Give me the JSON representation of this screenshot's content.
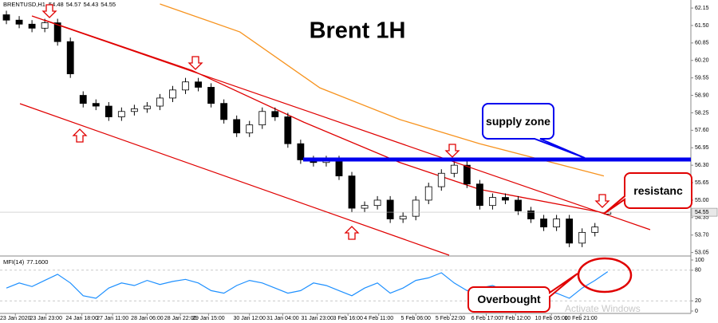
{
  "chart_data": [
    {
      "type": "candlestick",
      "title": "Brent 1H",
      "symbol": "BRENTUSD,H1",
      "xlim": [
        0,
        54
      ],
      "ylim": [
        52.95,
        62.36
      ],
      "open": [
        61.9,
        61.7,
        61.55,
        61.4,
        61.6,
        60.9,
        58.9,
        58.6,
        58.5,
        58.1,
        58.3,
        58.4,
        58.5,
        58.8,
        59.1,
        59.4,
        59.2,
        58.6,
        58,
        57.5,
        57.8,
        58.3,
        58.1,
        57.1,
        56.5,
        56.4,
        56.5,
        55.9,
        54.7,
        54.8,
        55,
        54.3,
        54.4,
        55,
        55.5,
        56,
        56.3,
        55.6,
        54.8,
        55.1,
        55,
        54.6,
        54.3,
        54,
        54.3,
        53.4,
        53.8,
        54.48
      ],
      "high": [
        62.05,
        61.85,
        61.7,
        61.75,
        61.75,
        61.05,
        59.05,
        58.75,
        58.65,
        58.45,
        58.55,
        58.65,
        58.95,
        59.25,
        59.55,
        59.55,
        59.35,
        58.75,
        58.15,
        57.95,
        58.45,
        58.45,
        58.25,
        57.25,
        56.65,
        56.65,
        56.65,
        56.05,
        54.95,
        55.15,
        55.15,
        54.55,
        55.15,
        55.65,
        56.15,
        56.45,
        56.45,
        55.75,
        55.25,
        55.25,
        55.15,
        54.75,
        54.45,
        54.45,
        54.45,
        53.95,
        54.15,
        54.57
      ],
      "low": [
        61.55,
        61.4,
        61.25,
        61.25,
        60.75,
        59.55,
        58.45,
        58.35,
        57.95,
        57.95,
        58.15,
        58.25,
        58.35,
        58.65,
        58.95,
        59.05,
        58.45,
        57.85,
        57.35,
        57.35,
        57.65,
        57.95,
        56.95,
        56.35,
        56.25,
        56.25,
        55.75,
        54.55,
        54.55,
        54.65,
        54.15,
        54.15,
        54.25,
        54.85,
        55.35,
        55.85,
        55.45,
        54.65,
        54.65,
        54.85,
        54.45,
        54.15,
        53.85,
        53.85,
        53.25,
        53.25,
        53.65,
        54.43
      ],
      "close": [
        61.7,
        61.55,
        61.4,
        61.6,
        60.9,
        59.7,
        58.6,
        58.5,
        58.1,
        58.3,
        58.4,
        58.5,
        58.8,
        59.1,
        59.4,
        59.2,
        58.6,
        58,
        57.5,
        57.8,
        58.3,
        58.1,
        57.1,
        56.5,
        56.4,
        56.5,
        55.9,
        54.7,
        54.8,
        55,
        54.3,
        54.4,
        55,
        55.5,
        56,
        56.3,
        55.6,
        54.8,
        55.1,
        55,
        54.6,
        54.3,
        54,
        54.3,
        53.4,
        53.8,
        54,
        54.55
      ],
      "overlays": [
        {
          "color": "#e00000",
          "x": [
            3.5,
            15,
            23.75,
            31.25,
            37.5,
            47.5
          ],
          "values": [
            61.7,
            59.83,
            57.9,
            56.4,
            55.4,
            54.5
          ]
        },
        {
          "color": "#f7931e",
          "x": [
            12.5,
            18.75,
            25,
            31.25,
            37.5,
            47.2
          ],
          "values": [
            62.3,
            61.26,
            59.18,
            58.0,
            57.1,
            55.9
          ]
        }
      ],
      "yticks": [
        62.15,
        {
          "value": 61.5,
          "label": "61.50"
        },
        60.85,
        {
          "value": 60.2,
          "label": "60.20"
        },
        59.55,
        {
          "value": 58.9,
          "label": "58.90"
        },
        58.25,
        {
          "value": 57.6,
          "label": "57.60"
        },
        56.95,
        {
          "value": 56.3,
          "label": "56.30"
        },
        55.65,
        {
          "value": 55,
          "label": "55.00"
        },
        54.35,
        {
          "value": 53.7,
          "label": "53.70"
        },
        53.05
      ],
      "xticks": [
        {
          "value": 1.2,
          "label": "23 Jan 2020"
        },
        {
          "value": 3.6,
          "label": "23 Jan 23:00"
        },
        {
          "value": 6.4,
          "label": "24 Jan 18:00"
        },
        {
          "value": 8.8,
          "label": "27 Jan 11:00"
        },
        {
          "value": 11.5,
          "label": "28 Jan 06:00"
        },
        {
          "value": 14.1,
          "label": "28 Jan 22:00"
        },
        {
          "value": 16.3,
          "label": "29 Jan 15:00"
        },
        {
          "value": 19.5,
          "label": "30 Jan 12:00"
        },
        {
          "value": 22.1,
          "label": "31 Jan 04:00"
        },
        {
          "value": 24.8,
          "label": "31 Jan 23:00"
        },
        {
          "value": 27.2,
          "label": "3 Feb 16:00"
        },
        {
          "value": 29.6,
          "label": "4 Feb 11:00"
        },
        {
          "value": 32.5,
          "label": "5 Feb 06:00"
        },
        {
          "value": 35.2,
          "label": "5 Feb 22:00"
        },
        {
          "value": 38.0,
          "label": "6 Feb 17:00"
        },
        {
          "value": 40.3,
          "label": "7 Feb 12:00"
        },
        {
          "value": 43.1,
          "label": "10 Feb 05:00"
        },
        {
          "value": 45.4,
          "label": "10 Feb 21:00"
        }
      ],
      "annotations": [
        "supply zone",
        "resistanc",
        "Overbought"
      ],
      "watermark": "Activate Windows"
    },
    {
      "type": "line",
      "indicator": "MFI(14)",
      "current": {
        "value": 77.16,
        "label": "77.1600"
      },
      "xlim": [
        0,
        54
      ],
      "ylim": [
        0,
        100
      ],
      "yticks": [
        100,
        80,
        20,
        0
      ],
      "levels": [
        80,
        20
      ],
      "color": "#1e90ff",
      "values": [
        45,
        55,
        48,
        60,
        72,
        55,
        30,
        25,
        45,
        55,
        50,
        60,
        52,
        58,
        62,
        55,
        40,
        35,
        50,
        60,
        55,
        45,
        35,
        40,
        55,
        50,
        40,
        30,
        45,
        55,
        35,
        45,
        60,
        65,
        75,
        55,
        40,
        45,
        50,
        40,
        35,
        30,
        40,
        35,
        25,
        45,
        60,
        77.16
      ]
    }
  ]
}
